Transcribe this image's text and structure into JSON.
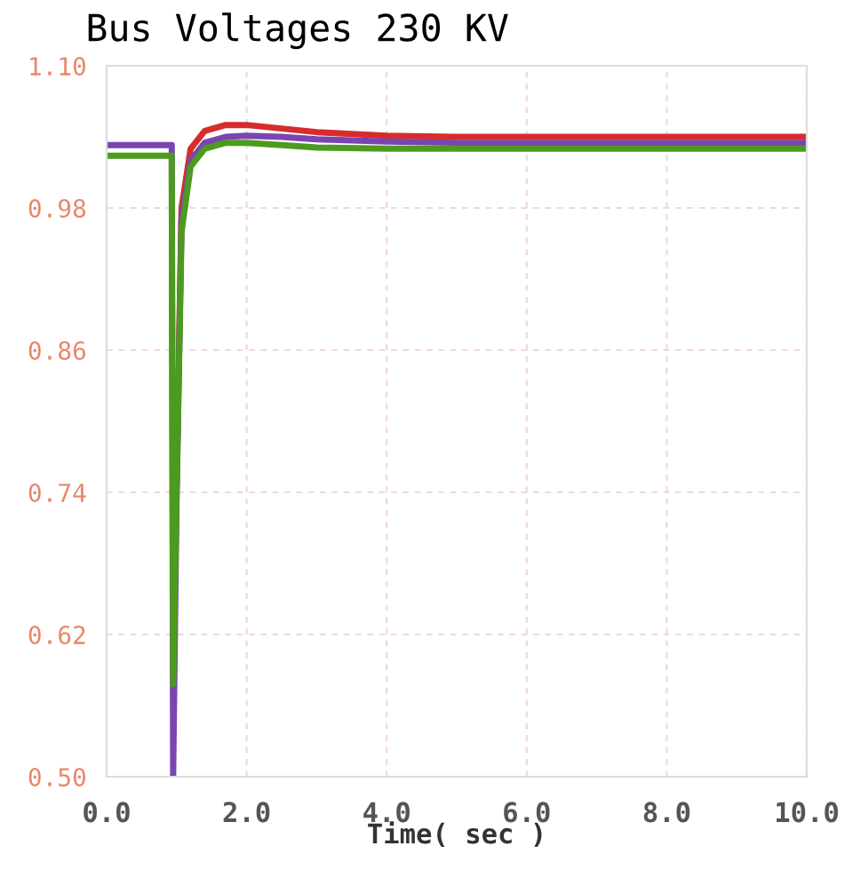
{
  "chart_data": {
    "type": "line",
    "title": "Bus Voltages 230 KV",
    "xlabel": "Time( sec )",
    "xlim": [
      0,
      10
    ],
    "xticks": [
      {
        "value": 0,
        "label": "0.0"
      },
      {
        "value": 2,
        "label": "2.0"
      },
      {
        "value": 4,
        "label": "4.0"
      },
      {
        "value": 6,
        "label": "6.0"
      },
      {
        "value": 8,
        "label": "8.0"
      },
      {
        "value": 10,
        "label": "10.0"
      }
    ],
    "ylim": [
      0.5,
      1.1
    ],
    "yticks": [
      {
        "value": 0.5,
        "label": "0.50"
      },
      {
        "value": 0.62,
        "label": "0.62"
      },
      {
        "value": 0.74,
        "label": "0.74"
      },
      {
        "value": 0.86,
        "label": "0.86"
      },
      {
        "value": 0.98,
        "label": "0.98"
      },
      {
        "value": 1.1,
        "label": "1.10"
      }
    ],
    "grid": true,
    "line_style": "solid",
    "marker": "none",
    "x": [
      0,
      0.93,
      0.95,
      1.0,
      1.07,
      1.2,
      1.4,
      1.7,
      2.0,
      2.5,
      3.0,
      4.0,
      5.0,
      6.0,
      8.0,
      10.0
    ],
    "series": [
      {
        "color": "#d62c2c",
        "values": [
          null,
          null,
          null,
          0.75,
          0.98,
          1.03,
          1.045,
          1.05,
          1.05,
          1.047,
          1.044,
          1.041,
          1.04,
          1.04,
          1.04,
          1.04
        ]
      },
      {
        "color": "#7a45b0",
        "values": [
          1.033,
          1.033,
          0.5,
          0.74,
          0.97,
          1.02,
          1.035,
          1.04,
          1.041,
          1.04,
          1.038,
          1.036,
          1.035,
          1.035,
          1.035,
          1.035
        ]
      },
      {
        "color": "#4c9a1e",
        "values": [
          1.024,
          1.024,
          0.578,
          0.74,
          0.96,
          1.015,
          1.03,
          1.035,
          1.035,
          1.033,
          1.031,
          1.03,
          1.03,
          1.03,
          1.03,
          1.03
        ]
      }
    ]
  }
}
